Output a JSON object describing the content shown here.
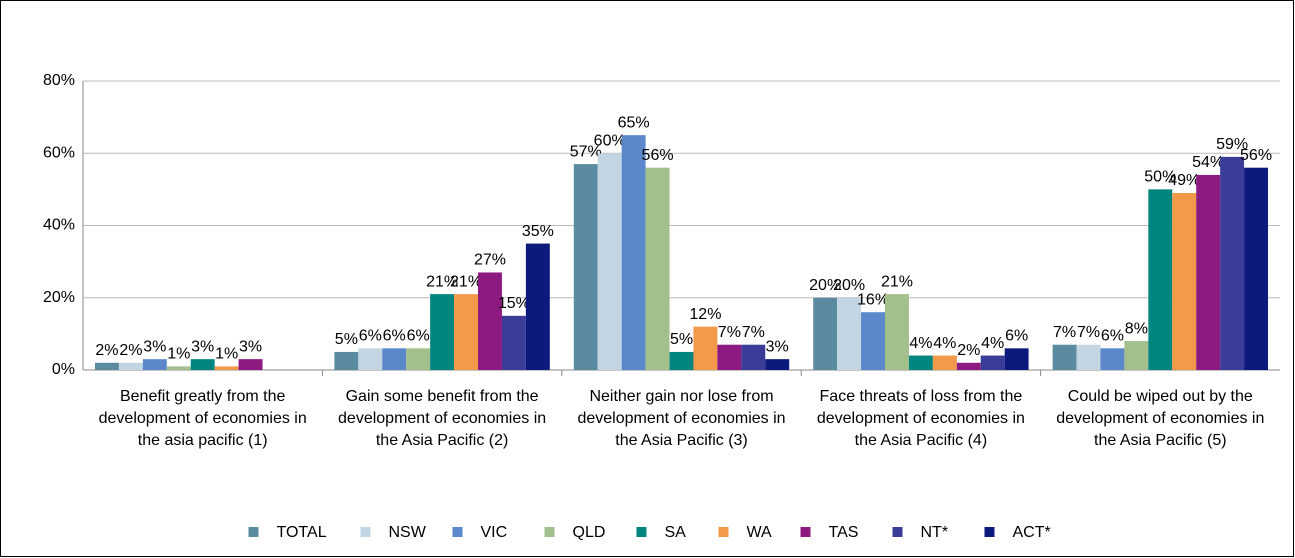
{
  "chart_data": {
    "type": "bar",
    "categories": [
      "Benefit greatly from the development of economies in the asia pacific (1)",
      "Gain some benefit from the development of economies in the Asia Pacific (2)",
      "Neither gain nor lose from development of economies in the Asia Pacific (3)",
      "Face threats of loss from the development of economies in the Asia Pacific (4)",
      "Could be wiped out by the development of economies in the Asia Pacific (5)"
    ],
    "series": [
      {
        "name": "TOTAL",
        "color": "#5b8ba0",
        "values": [
          2,
          5,
          57,
          20,
          7
        ],
        "value_labels": [
          "2%",
          "5%",
          "57%",
          "20%",
          "7%"
        ]
      },
      {
        "name": "NSW",
        "color": "#c3d5e2",
        "values": [
          2,
          6,
          60,
          20,
          7
        ],
        "value_labels": [
          "2%",
          "6%",
          "60%",
          "20%",
          "7%"
        ]
      },
      {
        "name": "VIC",
        "color": "#5b88cb",
        "values": [
          3,
          6,
          65,
          16,
          6
        ],
        "value_labels": [
          "3%",
          "6%",
          "65%",
          "16%",
          "6%"
        ]
      },
      {
        "name": "QLD",
        "color": "#a3bf8b",
        "values": [
          1,
          6,
          56,
          21,
          8
        ],
        "value_labels": [
          "1%",
          "6%",
          "56%",
          "21%",
          "8%"
        ]
      },
      {
        "name": "SA",
        "color": "#00857f",
        "values": [
          3,
          21,
          5,
          4,
          50
        ],
        "value_labels": [
          "3%",
          "21%",
          "5%",
          "4%",
          "50%"
        ]
      },
      {
        "name": "WA",
        "color": "#f39a4a",
        "values": [
          1,
          21,
          12,
          4,
          49
        ],
        "value_labels": [
          "1%",
          "21%",
          "12%",
          "4%",
          "49%"
        ]
      },
      {
        "name": "TAS",
        "color": "#8c1a80",
        "values": [
          3,
          27,
          7,
          2,
          54
        ],
        "value_labels": [
          "3%",
          "27%",
          "7%",
          "2%",
          "54%"
        ]
      },
      {
        "name": "NT*",
        "color": "#3b3b98",
        "values": [
          null,
          15,
          7,
          4,
          59
        ],
        "value_labels": [
          null,
          "15%",
          "7%",
          "4%",
          "59%"
        ]
      },
      {
        "name": "ACT*",
        "color": "#0b1a7c",
        "values": [
          null,
          35,
          3,
          6,
          56
        ],
        "value_labels": [
          null,
          "35%",
          "3%",
          "6%",
          "56%"
        ]
      }
    ],
    "ylim": [
      0,
      80
    ],
    "yticks": [
      {
        "value": 0,
        "label": "0%"
      },
      {
        "value": 20,
        "label": "20%"
      },
      {
        "value": 40,
        "label": "40%"
      },
      {
        "value": 60,
        "label": "60%"
      },
      {
        "value": 80,
        "label": "80%"
      }
    ],
    "grid": true,
    "legend": "bottom"
  }
}
